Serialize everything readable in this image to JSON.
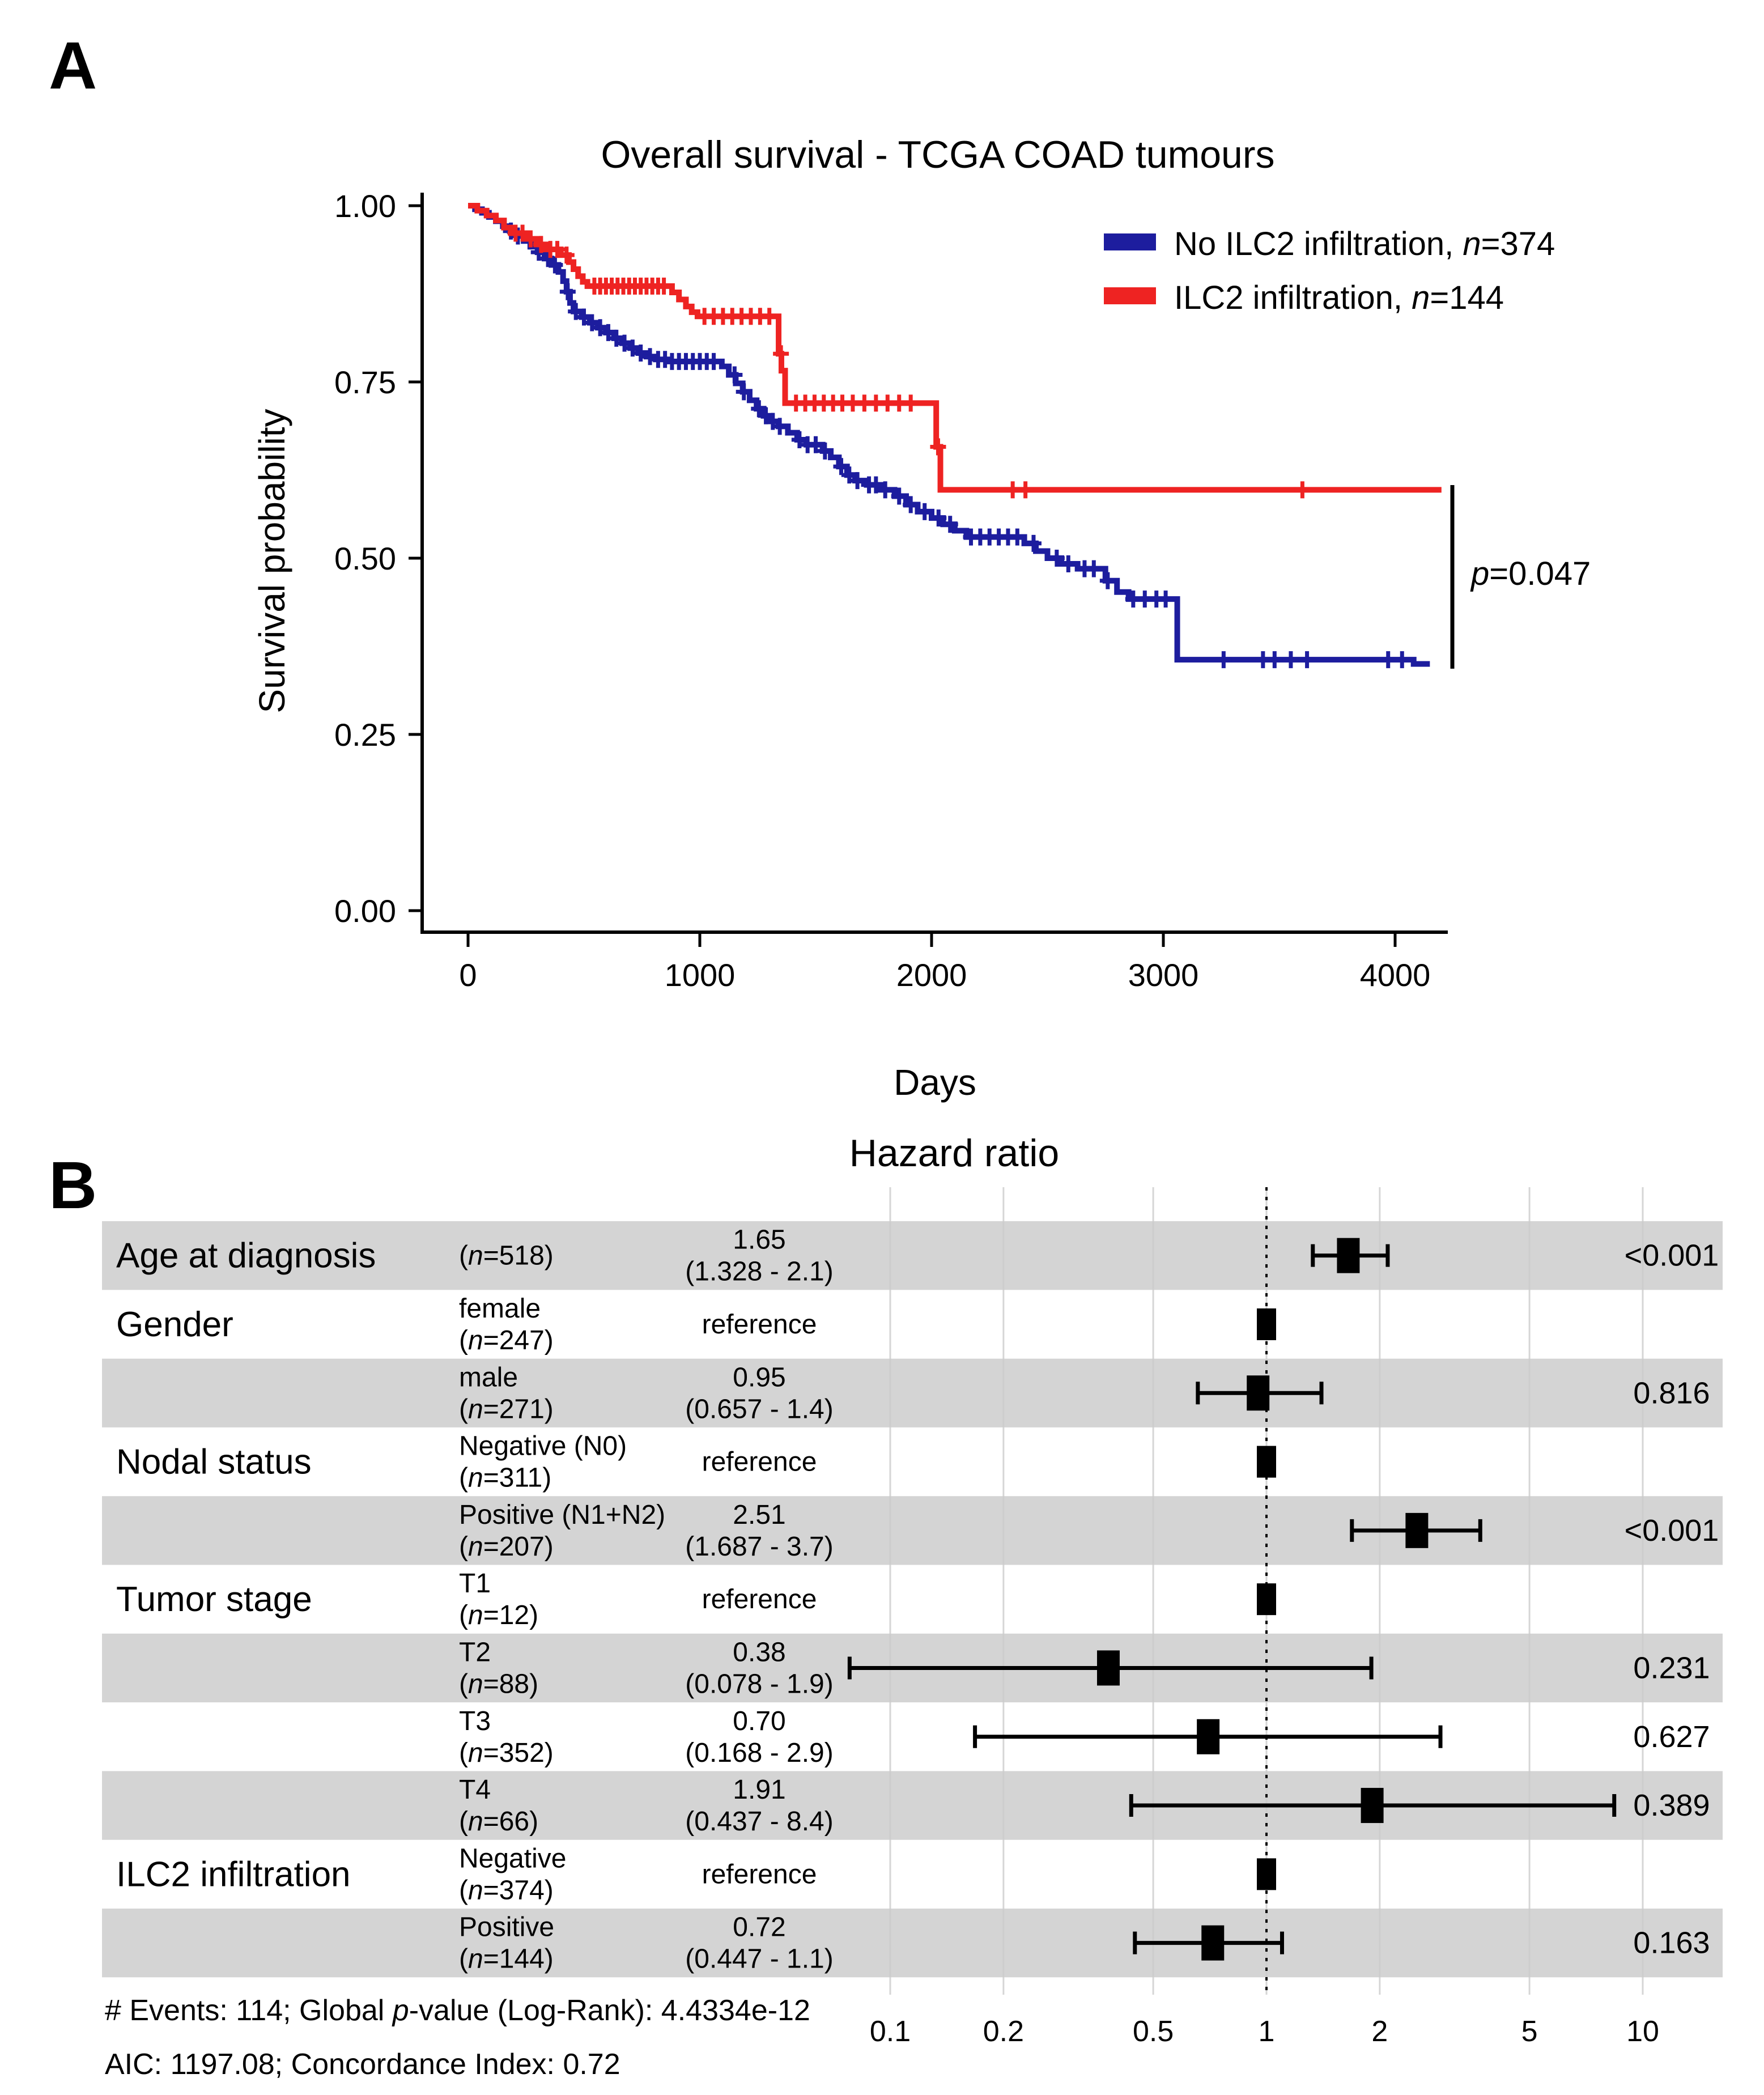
{
  "figure": {
    "panel_a_label": "A",
    "panel_b_label": "B"
  },
  "panel_a": {
    "title": "Overall survival - TCGA COAD tumours",
    "x_axis": {
      "label": "Days"
    },
    "y_axis": {
      "label": "Survival probability"
    },
    "legend": [
      {
        "prefix": "No ILC2 infiltration, ",
        "n_symbol": "n",
        "n_value": "=374",
        "color": "#1d1d9e"
      },
      {
        "prefix": "ILC2 infiltration, ",
        "n_symbol": "n",
        "n_value": "=144",
        "color": "#ee2322"
      }
    ],
    "p_annotation": {
      "symbol": "p",
      "value": "=0.047"
    }
  },
  "panel_b": {
    "title": "Hazard ratio",
    "footnote1": {
      "pre": "# Events: 114; Global ",
      "italic": "p",
      "post": "-value (Log-Rank): 4.4334e-12"
    },
    "footnote2": "AIC: 1197.08; Concordance Index: 0.72"
  },
  "chart_data": [
    {
      "type": "line",
      "subtype": "kaplan_meier_step",
      "title": "Overall survival - TCGA COAD tumours",
      "xlabel": "Days",
      "ylabel": "Survival probability",
      "xlim": [
        0,
        4400
      ],
      "ylim": [
        0.0,
        1.0
      ],
      "grid": false,
      "legend_position": "top-right",
      "x_ticks": [
        {
          "v": 0,
          "label": "0"
        },
        {
          "v": 1000,
          "label": "1000"
        },
        {
          "v": 2000,
          "label": "2000"
        },
        {
          "v": 3000,
          "label": "3000"
        },
        {
          "v": 4000,
          "label": "4000"
        }
      ],
      "y_ticks": [
        {
          "v": 1.0,
          "label": "1.00"
        },
        {
          "v": 0.75,
          "label": "0.75"
        },
        {
          "v": 0.5,
          "label": "0.50"
        },
        {
          "v": 0.25,
          "label": "0.25"
        },
        {
          "v": 0.0,
          "label": "0.00"
        }
      ],
      "annotation": "p=0.047",
      "series": [
        {
          "name": "No ILC2 infiltration",
          "n": 374,
          "color": "#1d1d9e",
          "steps": [
            [
              0,
              1.0
            ],
            [
              30,
              0.995
            ],
            [
              60,
              0.99
            ],
            [
              90,
              0.984
            ],
            [
              120,
              0.978
            ],
            [
              150,
              0.971
            ],
            [
              180,
              0.964
            ],
            [
              210,
              0.957
            ],
            [
              240,
              0.95
            ],
            [
              270,
              0.942
            ],
            [
              300,
              0.934
            ],
            [
              330,
              0.925
            ],
            [
              360,
              0.916
            ],
            [
              390,
              0.906
            ],
            [
              410,
              0.893
            ],
            [
              425,
              0.878
            ],
            [
              440,
              0.862
            ],
            [
              455,
              0.85
            ],
            [
              490,
              0.842
            ],
            [
              525,
              0.834
            ],
            [
              560,
              0.827
            ],
            [
              595,
              0.82
            ],
            [
              630,
              0.812
            ],
            [
              665,
              0.805
            ],
            [
              700,
              0.798
            ],
            [
              735,
              0.791
            ],
            [
              770,
              0.786
            ],
            [
              810,
              0.782
            ],
            [
              860,
              0.779
            ],
            [
              1095,
              0.772
            ],
            [
              1125,
              0.76
            ],
            [
              1155,
              0.748
            ],
            [
              1185,
              0.736
            ],
            [
              1215,
              0.724
            ],
            [
              1245,
              0.712
            ],
            [
              1275,
              0.702
            ],
            [
              1305,
              0.694
            ],
            [
              1340,
              0.687
            ],
            [
              1380,
              0.678
            ],
            [
              1420,
              0.668
            ],
            [
              1460,
              0.661
            ],
            [
              1530,
              0.652
            ],
            [
              1565,
              0.643
            ],
            [
              1600,
              0.63
            ],
            [
              1635,
              0.618
            ],
            [
              1670,
              0.61
            ],
            [
              1720,
              0.604
            ],
            [
              1780,
              0.597
            ],
            [
              1840,
              0.588
            ],
            [
              1890,
              0.576
            ],
            [
              1940,
              0.566
            ],
            [
              2000,
              0.557
            ],
            [
              2050,
              0.548
            ],
            [
              2100,
              0.539
            ],
            [
              2150,
              0.53
            ],
            [
              2400,
              0.521
            ],
            [
              2450,
              0.51
            ],
            [
              2500,
              0.5
            ],
            [
              2560,
              0.492
            ],
            [
              2630,
              0.485
            ],
            [
              2750,
              0.468
            ],
            [
              2800,
              0.452
            ],
            [
              2850,
              0.442
            ],
            [
              3060,
              0.356
            ],
            [
              4080,
              0.35
            ],
            [
              4150,
              0.35
            ]
          ],
          "censor_days": [
            185,
            215,
            265,
            305,
            345,
            375,
            430,
            465,
            500,
            535,
            570,
            605,
            640,
            675,
            710,
            745,
            785,
            820,
            850,
            880,
            910,
            940,
            970,
            1000,
            1030,
            1060,
            1150,
            1190,
            1255,
            1285,
            1315,
            1345,
            1430,
            1465,
            1500,
            1540,
            1610,
            1645,
            1680,
            1730,
            1760,
            1800,
            1860,
            1910,
            1970,
            2030,
            2080,
            2170,
            2210,
            2250,
            2290,
            2330,
            2370,
            2440,
            2540,
            2590,
            2660,
            2700,
            2760,
            2870,
            2920,
            2970,
            3010,
            3260,
            3430,
            3480,
            3550,
            3620,
            3970,
            4030
          ]
        },
        {
          "name": "ILC2 infiltration",
          "n": 144,
          "color": "#ee2322",
          "steps": [
            [
              0,
              1.0
            ],
            [
              40,
              0.993
            ],
            [
              80,
              0.986
            ],
            [
              120,
              0.979
            ],
            [
              155,
              0.969
            ],
            [
              185,
              0.961
            ],
            [
              255,
              0.953
            ],
            [
              295,
              0.945
            ],
            [
              335,
              0.938
            ],
            [
              400,
              0.93
            ],
            [
              435,
              0.92
            ],
            [
              455,
              0.91
            ],
            [
              475,
              0.9
            ],
            [
              495,
              0.892
            ],
            [
              515,
              0.886
            ],
            [
              880,
              0.877
            ],
            [
              910,
              0.867
            ],
            [
              940,
              0.857
            ],
            [
              965,
              0.849
            ],
            [
              990,
              0.843
            ],
            [
              1340,
              0.79
            ],
            [
              1352,
              0.766
            ],
            [
              1368,
              0.72
            ],
            [
              2020,
              0.658
            ],
            [
              2038,
              0.597
            ],
            [
              4200,
              0.597
            ]
          ],
          "censor_days": [
            205,
            235,
            270,
            315,
            355,
            385,
            425,
            545,
            570,
            595,
            620,
            645,
            670,
            695,
            720,
            745,
            770,
            795,
            820,
            845,
            1020,
            1060,
            1100,
            1140,
            1180,
            1220,
            1260,
            1300,
            1350,
            1415,
            1455,
            1495,
            1535,
            1575,
            1615,
            1660,
            1710,
            1760,
            1810,
            1860,
            1910,
            2028,
            2350,
            2405,
            3600
          ]
        }
      ]
    },
    {
      "type": "forest",
      "title": "Hazard ratio",
      "scale": "log10",
      "x_ticks": [
        {
          "v": 0.1,
          "label": "0.1"
        },
        {
          "v": 0.2,
          "label": "0.2"
        },
        {
          "v": 0.5,
          "label": "0.5"
        },
        {
          "v": 1,
          "label": "1"
        },
        {
          "v": 2,
          "label": "2"
        },
        {
          "v": 5,
          "label": "5"
        },
        {
          "v": 10,
          "label": "10"
        }
      ],
      "reference_line": 1,
      "rows": [
        {
          "factor": "Age at diagnosis",
          "level": null,
          "n": "518",
          "estimate": "1.65",
          "ci": "(1.328 - 2.1)",
          "hr": 1.65,
          "lo": 1.328,
          "hi": 2.1,
          "p": "<0.001",
          "shaded": true,
          "reference": false
        },
        {
          "factor": "Gender",
          "level": "female",
          "n": "247",
          "estimate": "reference",
          "ci": null,
          "hr": 1,
          "lo": null,
          "hi": null,
          "p": null,
          "shaded": false,
          "reference": true
        },
        {
          "factor": null,
          "level": "male",
          "n": "271",
          "estimate": "0.95",
          "ci": "(0.657 - 1.4)",
          "hr": 0.95,
          "lo": 0.657,
          "hi": 1.4,
          "p": "0.816",
          "shaded": true,
          "reference": false
        },
        {
          "factor": "Nodal status",
          "level": "Negative (N0)",
          "n": "311",
          "estimate": "reference",
          "ci": null,
          "hr": 1,
          "lo": null,
          "hi": null,
          "p": null,
          "shaded": false,
          "reference": true
        },
        {
          "factor": null,
          "level": "Positive (N1+N2)",
          "n": "207",
          "estimate": "2.51",
          "ci": "(1.687 - 3.7)",
          "hr": 2.51,
          "lo": 1.687,
          "hi": 3.7,
          "p": "<0.001",
          "shaded": true,
          "reference": false
        },
        {
          "factor": "Tumor stage",
          "level": "T1",
          "n": "12",
          "estimate": "reference",
          "ci": null,
          "hr": 1,
          "lo": null,
          "hi": null,
          "p": null,
          "shaded": false,
          "reference": true
        },
        {
          "factor": null,
          "level": "T2",
          "n": "88",
          "estimate": "0.38",
          "ci": "(0.078 - 1.9)",
          "hr": 0.38,
          "lo": 0.078,
          "hi": 1.9,
          "p": "0.231",
          "shaded": true,
          "reference": false
        },
        {
          "factor": null,
          "level": "T3",
          "n": "352",
          "estimate": "0.70",
          "ci": "(0.168 - 2.9)",
          "hr": 0.7,
          "lo": 0.168,
          "hi": 2.9,
          "p": "0.627",
          "shaded": false,
          "reference": false
        },
        {
          "factor": null,
          "level": "T4",
          "n": "66",
          "estimate": "1.91",
          "ci": "(0.437 - 8.4)",
          "hr": 1.91,
          "lo": 0.437,
          "hi": 8.4,
          "p": "0.389",
          "shaded": true,
          "reference": false
        },
        {
          "factor": "ILC2 infiltration",
          "level": "Negative",
          "n": "374",
          "estimate": "reference",
          "ci": null,
          "hr": 1,
          "lo": null,
          "hi": null,
          "p": null,
          "shaded": false,
          "reference": true
        },
        {
          "factor": null,
          "level": "Positive",
          "n": "144",
          "estimate": "0.72",
          "ci": "(0.447 - 1.1)",
          "hr": 0.72,
          "lo": 0.447,
          "hi": 1.1,
          "p": "0.163",
          "shaded": true,
          "reference": false
        }
      ],
      "colors": {
        "band": "#d4d4d4",
        "gridline": "#cccccc",
        "marker": "#000000"
      }
    }
  ]
}
